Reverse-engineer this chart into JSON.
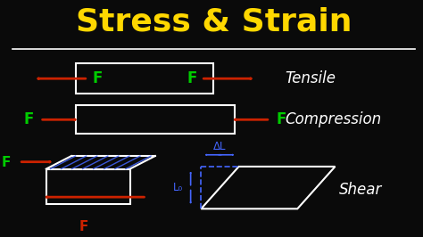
{
  "background_color": "#0a0a0a",
  "title": "Stress & Strain",
  "title_color": "#FFD700",
  "title_fontsize": 26,
  "white": "#FFFFFF",
  "green": "#00CC00",
  "red": "#CC2200",
  "blue": "#4466FF",
  "label_fontsize": 12,
  "tensile_label": "Tensile",
  "compression_label": "Compression",
  "shear_label": "Shear",
  "deltaL_label": "ΔL",
  "L0_label": "L₀"
}
